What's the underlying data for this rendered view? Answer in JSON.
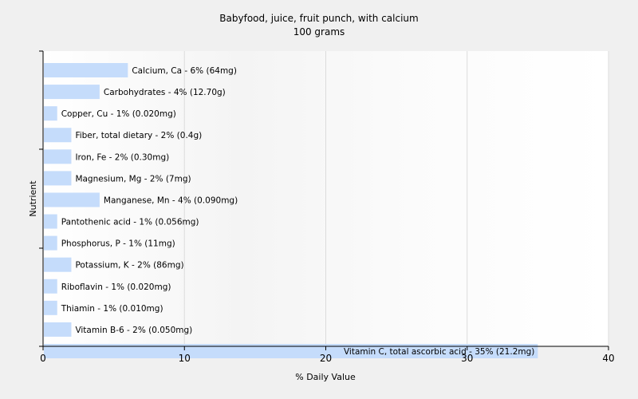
{
  "chart_data": {
    "type": "bar",
    "orientation": "horizontal",
    "title": "Babyfood, juice, fruit punch, with calcium",
    "subtitle": "100 grams",
    "xlabel": "% Daily Value",
    "ylabel": "Nutrient",
    "xlim": [
      0,
      40
    ],
    "x_ticks": [
      0,
      10,
      20,
      30,
      40
    ],
    "grid": true,
    "categories": [
      "Calcium, Ca",
      "Carbohydrates",
      "Copper, Cu",
      "Fiber, total dietary",
      "Iron, Fe",
      "Magnesium, Mg",
      "Manganese, Mn",
      "Pantothenic acid",
      "Phosphorus, P",
      "Potassium, K",
      "Riboflavin",
      "Thiamin",
      "Vitamin B-6",
      "Vitamin C, total ascorbic acid"
    ],
    "values": [
      6,
      4,
      1,
      2,
      2,
      2,
      4,
      1,
      1,
      2,
      1,
      1,
      2,
      35
    ],
    "bar_labels": [
      "Calcium, Ca - 6% (64mg)",
      "Carbohydrates - 4% (12.70g)",
      "Copper, Cu - 1% (0.020mg)",
      "Fiber, total dietary - 2% (0.4g)",
      "Iron, Fe - 2% (0.30mg)",
      "Magnesium, Mg - 2% (7mg)",
      "Manganese, Mn - 4% (0.090mg)",
      "Pantothenic acid - 1% (0.056mg)",
      "Phosphorus, P - 1% (11mg)",
      "Potassium, K - 2% (86mg)",
      "Riboflavin - 1% (0.020mg)",
      "Thiamin - 1% (0.010mg)",
      "Vitamin B-6 - 2% (0.050mg)",
      "Vitamin C, total ascorbic acid - 35% (21.2mg)"
    ],
    "colors": {
      "background": "#f0f0f0",
      "bar": "#c5dcfb",
      "grid": "#dcdcdc",
      "axis": "#000000"
    }
  }
}
